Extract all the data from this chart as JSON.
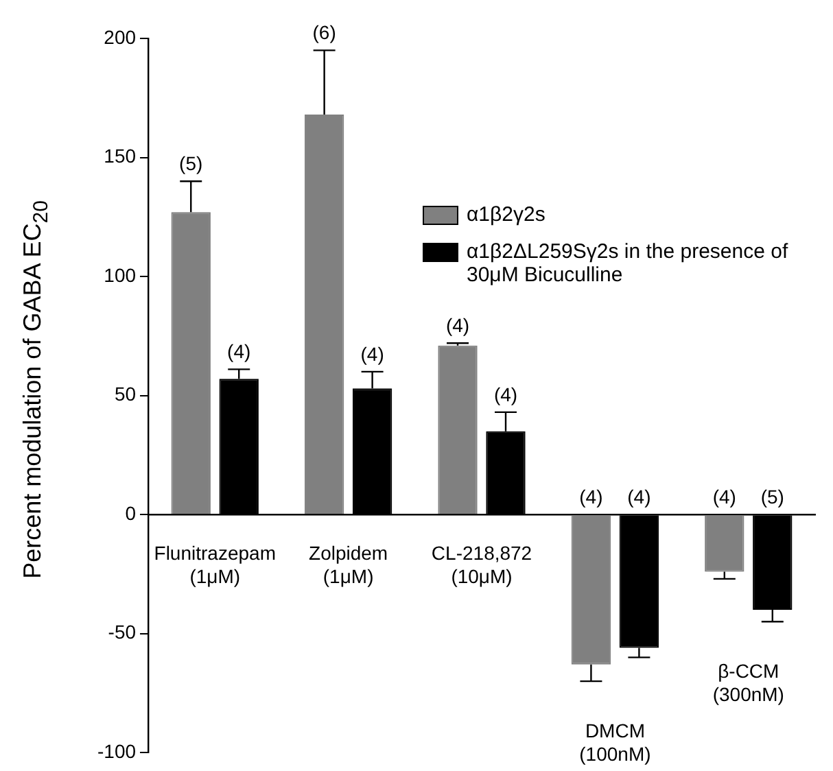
{
  "chart_data": {
    "type": "bar",
    "ylabel": "Percent modulation of GABA EC$_{20}$",
    "categories": [
      "Flunitrazepam (1μM)",
      "Zolpidem (1μM)",
      "CL-218,872 (10μM)",
      "DMCM (100nM)",
      "β-CCM (300nM)"
    ],
    "series": [
      {
        "name": "α1β2γ2s",
        "color": "#808080",
        "values": [
          127,
          168,
          71,
          -63,
          -24
        ],
        "errors": [
          [
            127,
            140
          ],
          [
            168,
            195
          ],
          [
            71,
            72
          ],
          [
            -70,
            -63
          ],
          [
            -27,
            -24
          ]
        ]
      },
      {
        "name": "α1β2ΔL259Sγ2s in the presence of 30μM Bicuculline",
        "color": "#000000",
        "values": [
          57,
          53,
          35,
          -56,
          -40
        ],
        "errors": [
          [
            57,
            61
          ],
          [
            53,
            60
          ],
          [
            35,
            43
          ],
          [
            -60,
            -56
          ],
          [
            -45,
            -40
          ]
        ]
      }
    ],
    "ylim": [
      -100,
      200
    ],
    "yticks": [
      -100,
      -50,
      0,
      50,
      100,
      150,
      200
    ],
    "grid": false,
    "legend": "top right",
    "annotations": [
      "(5)",
      "(4)",
      "(6)",
      "(4)",
      "(4)",
      "(4)",
      "(4)",
      "(4)",
      "(4)",
      "(5)"
    ]
  }
}
